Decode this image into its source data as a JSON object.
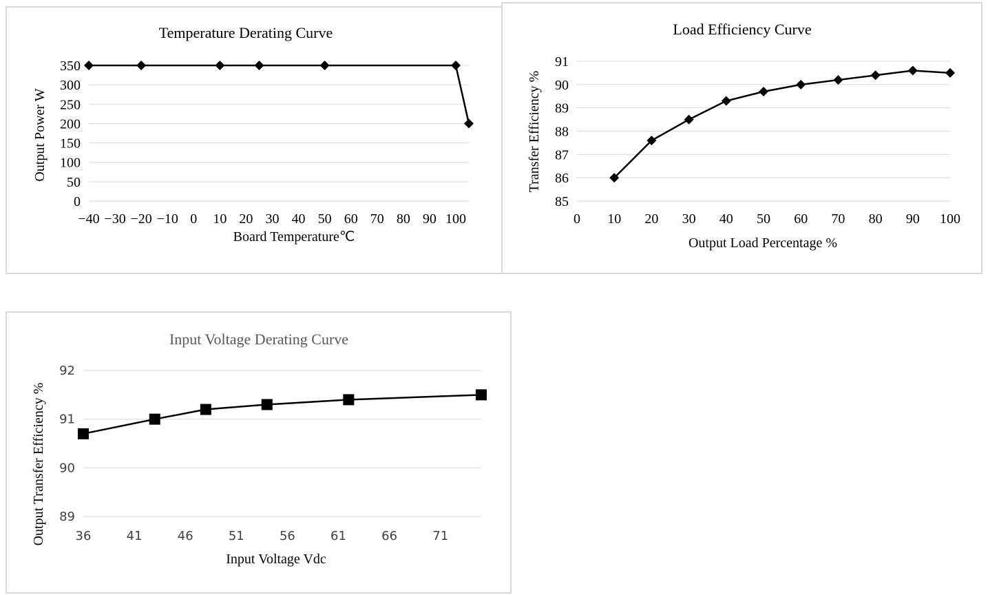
{
  "chart_data": [
    {
      "type": "line",
      "title": "Temperature Derating Curve",
      "xlabel": "Board Temperature℃",
      "ylabel": "Output Power W",
      "xlim": [
        -40,
        105
      ],
      "ylim": [
        0,
        350
      ],
      "xticks": [
        "−40",
        "−30",
        "−20",
        "−10",
        "0",
        "10",
        "20",
        "30",
        "40",
        "50",
        "60",
        "70",
        "80",
        "90",
        "100"
      ],
      "yticks": [
        "0",
        "50",
        "100",
        "150",
        "200",
        "250",
        "300",
        "350"
      ],
      "grid": true,
      "marker": "diamond",
      "x": [
        -40,
        -20,
        10,
        25,
        50,
        100,
        105
      ],
      "y": [
        350,
        350,
        350,
        350,
        350,
        350,
        200
      ]
    },
    {
      "type": "line",
      "title": "Load Efficiency Curve",
      "xlabel": "Output Load Percentage %",
      "ylabel": "Transfer Efficiency %",
      "xlim": [
        0,
        100
      ],
      "ylim": [
        85,
        91
      ],
      "xticks": [
        "0",
        "10",
        "20",
        "30",
        "40",
        "50",
        "60",
        "70",
        "80",
        "90",
        "100"
      ],
      "yticks": [
        "85",
        "86",
        "87",
        "88",
        "89",
        "90",
        "91"
      ],
      "grid": true,
      "marker": "diamond",
      "x": [
        10,
        20,
        30,
        40,
        50,
        60,
        70,
        80,
        90,
        100
      ],
      "y": [
        86.0,
        87.6,
        88.5,
        89.3,
        89.7,
        90.0,
        90.2,
        90.4,
        90.6,
        90.5
      ]
    },
    {
      "type": "line",
      "title": "Input Voltage Derating Curve",
      "xlabel": "Input Voltage Vdc",
      "ylabel": "Output Transfer Efficiency %",
      "xlim": [
        36,
        75
      ],
      "ylim": [
        89,
        92
      ],
      "xticks": [
        "36",
        "41",
        "46",
        "51",
        "56",
        "61",
        "66",
        "71"
      ],
      "yticks": [
        "89",
        "90",
        "91",
        "92"
      ],
      "grid": true,
      "marker": "square",
      "x": [
        36,
        43,
        48,
        54,
        62,
        75
      ],
      "y": [
        90.7,
        91.0,
        91.2,
        91.3,
        91.4,
        91.5
      ]
    }
  ]
}
